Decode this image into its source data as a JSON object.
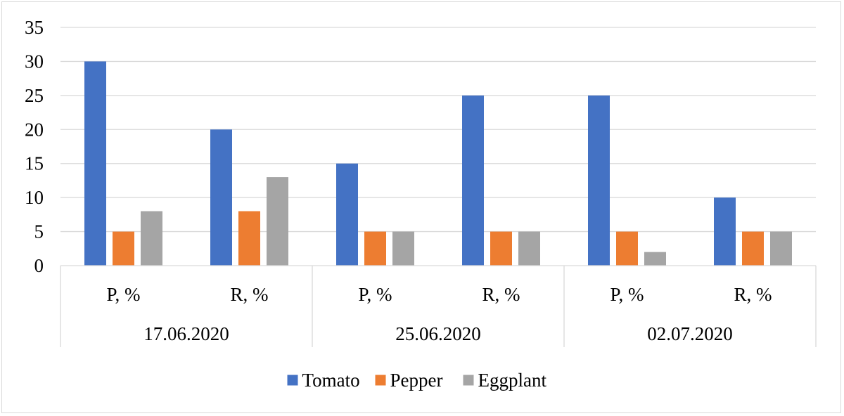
{
  "chart_data": {
    "type": "bar",
    "categories": [
      "P, %",
      "R, %",
      "P, %",
      "R, %",
      "P, %",
      "R, %"
    ],
    "groups": [
      {
        "label": "17.06.2020",
        "categories": [
          0,
          1
        ]
      },
      {
        "label": "25.06.2020",
        "categories": [
          2,
          3
        ]
      },
      {
        "label": "02.07.2020",
        "categories": [
          4,
          5
        ]
      }
    ],
    "series": [
      {
        "name": "Tomato",
        "color": "#4472C4",
        "values": [
          30,
          20,
          15,
          25,
          25,
          10
        ]
      },
      {
        "name": "Pepper",
        "color": "#ED7D31",
        "values": [
          5,
          8,
          5,
          5,
          5,
          5
        ]
      },
      {
        "name": "Eggplant",
        "color": "#A5A5A5",
        "values": [
          8,
          13,
          5,
          5,
          2,
          5
        ]
      }
    ],
    "ylim": [
      0,
      35
    ],
    "yticks": [
      0,
      5,
      10,
      15,
      20,
      25,
      30,
      35
    ],
    "grid": true,
    "legend_position": "bottom"
  }
}
